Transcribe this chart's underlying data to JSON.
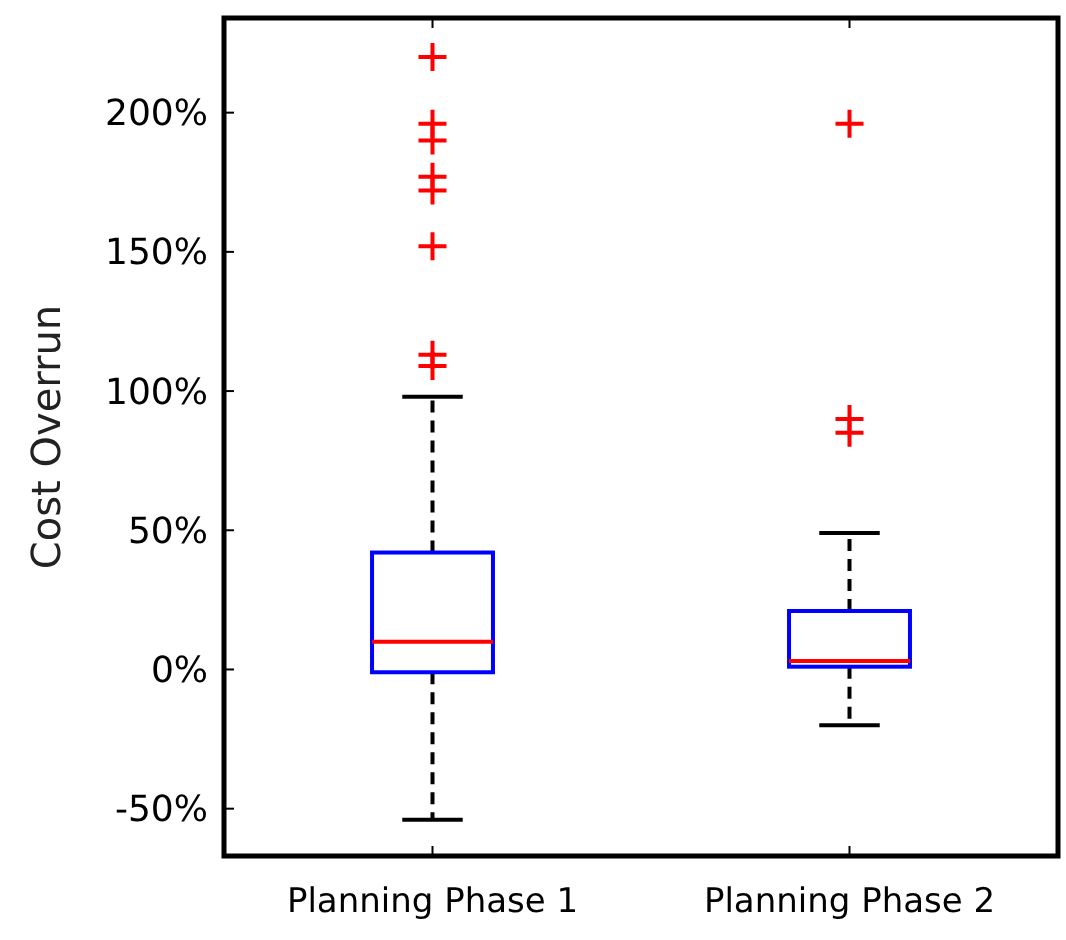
{
  "chart_data": {
    "type": "box",
    "ylabel": "Cost Overrun",
    "categories": [
      "Planning Phase 1",
      "Planning Phase 2"
    ],
    "boxes": [
      {
        "low": -54,
        "q1": -1,
        "median": 10,
        "q3": 42,
        "high": 98,
        "outliers": [
          220,
          196,
          190,
          177,
          172,
          152,
          113,
          109
        ]
      },
      {
        "low": -20,
        "q1": 1,
        "median": 3,
        "q3": 21,
        "high": 49,
        "outliers": [
          196,
          90,
          85
        ]
      }
    ],
    "ylim": [
      -67,
      234
    ],
    "yticks": [
      {
        "value": -50,
        "label": "-50%"
      },
      {
        "value": 0,
        "label": "0%"
      },
      {
        "value": 50,
        "label": "50%"
      },
      {
        "value": 100,
        "label": "100%"
      },
      {
        "value": 150,
        "label": "150%"
      },
      {
        "value": 200,
        "label": "200%"
      }
    ],
    "grid": false,
    "marker": "cross"
  }
}
